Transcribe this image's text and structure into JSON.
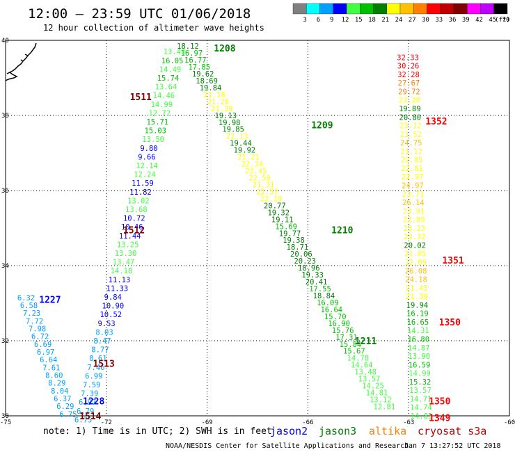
{
  "header": {
    "title": "12:00 – 23:59 UTC 01/06/2018",
    "subtitle": "12 hour collection of altimeter wave heights"
  },
  "legend": {
    "unit": "(ft)",
    "levels": [
      {
        "label": "3",
        "color": "#808080"
      },
      {
        "label": "6",
        "color": "#00ffff"
      },
      {
        "label": "9",
        "color": "#00a0ff"
      },
      {
        "label": "12",
        "color": "#0000ff"
      },
      {
        "label": "15",
        "color": "#40ff40"
      },
      {
        "label": "18",
        "color": "#00c000"
      },
      {
        "label": "21",
        "color": "#008000"
      },
      {
        "label": "24",
        "color": "#ffff00"
      },
      {
        "label": "27",
        "color": "#ffc000"
      },
      {
        "label": "30",
        "color": "#ff8000"
      },
      {
        "label": "33",
        "color": "#ff0000"
      },
      {
        "label": "36",
        "color": "#c00000"
      },
      {
        "label": "39",
        "color": "#800000"
      },
      {
        "label": "42",
        "color": "#ff00ff"
      },
      {
        "label": "45",
        "color": "#c000ff"
      },
      {
        "label": "70",
        "color": "#000000"
      }
    ]
  },
  "notes": {
    "note": "note: 1) Time is in UTC; 2) SWH is in feet",
    "footer_left": "NOAA/NESDIS Center for Satellite Applications and Research",
    "footer_right": "Jan  7 13:27:52 UTC 2018"
  },
  "satellites": [
    {
      "name": "jason2",
      "color": "#0000ff"
    },
    {
      "name": "jason3",
      "color": "#008000"
    },
    {
      "name": "altika",
      "color": "#ff8000"
    },
    {
      "name": "cryosat s3a",
      "color": "#c00000"
    }
  ],
  "chart_data": {
    "type": "scatter",
    "title": "12 hour collection of altimeter wave heights",
    "xlabel": "",
    "ylabel": "",
    "xlim": [
      -75,
      -60
    ],
    "ylim": [
      30,
      40
    ],
    "x_ticks": [
      "-75",
      "-72",
      "-69",
      "-66",
      "-63",
      "-60"
    ],
    "y_ticks": [
      "30",
      "32",
      "34",
      "36",
      "38",
      "40"
    ],
    "grid": true,
    "pass_labels": [
      {
        "text": "1208",
        "lon": -68.8,
        "lat": 39.8,
        "color": "#008000"
      },
      {
        "text": "1511",
        "lon": -71.3,
        "lat": 38.5,
        "color": "#800000"
      },
      {
        "text": "1209",
        "lon": -65.9,
        "lat": 37.75,
        "color": "#008000"
      },
      {
        "text": "1352",
        "lon": -62.5,
        "lat": 37.85,
        "color": "#ff0000"
      },
      {
        "text": "1512",
        "lon": -71.5,
        "lat": 34.95,
        "color": "#800000"
      },
      {
        "text": "1210",
        "lon": -65.3,
        "lat": 34.95,
        "color": "#008000"
      },
      {
        "text": "1351",
        "lon": -62.0,
        "lat": 34.15,
        "color": "#ff0000"
      },
      {
        "text": "1227",
        "lon": -74.0,
        "lat": 33.1,
        "color": "#0000ff"
      },
      {
        "text": "1350",
        "lon": -62.1,
        "lat": 32.5,
        "color": "#ff0000"
      },
      {
        "text": "1211",
        "lon": -64.6,
        "lat": 32.0,
        "color": "#008000"
      },
      {
        "text": "1513",
        "lon": -72.4,
        "lat": 31.4,
        "color": "#800000"
      },
      {
        "text": "1228",
        "lon": -72.7,
        "lat": 30.4,
        "color": "#0000ff"
      },
      {
        "text": "1350",
        "lon": -62.4,
        "lat": 30.4,
        "color": "#ff0000"
      },
      {
        "text": "1514",
        "lon": -72.8,
        "lat": 30.0,
        "color": "#800000"
      },
      {
        "text": "1349",
        "lon": -62.4,
        "lat": 29.95,
        "color": "#ff0000"
      }
    ],
    "tracks": [
      {
        "name": "1208-1211",
        "start": [
          -69.9,
          39.85
        ],
        "end": [
          -64.05,
          30.25
        ],
        "values": [
          "18.12",
          "16.97",
          "16.77",
          "17.85",
          "19.62",
          "18.69",
          "19.84",
          "21.18",
          "21.28",
          "21.39",
          "19.13",
          "19.98",
          "19.85",
          "22.13",
          "19.44",
          "19.92",
          "21.21",
          "22.34",
          "23.45",
          "22.50",
          "21.31",
          "22.57",
          "22.19",
          "20.77",
          "19.32",
          "19.11",
          "15.69",
          "19.77",
          "19.38",
          "18.71",
          "20.06",
          "20.23",
          "18.96",
          "19.33",
          "20.41",
          "17.55",
          "18.84",
          "16.09",
          "16.64",
          "15.70",
          "16.90",
          "15.76",
          "17.31",
          "15.84",
          "15.67",
          "14.78",
          "14.64",
          "13.48",
          "13.57",
          "14.25",
          "14.81",
          "13.12",
          "12.81"
        ]
      },
      {
        "name": "1511-1514",
        "start": [
          -70.3,
          39.7
        ],
        "end": [
          -72.95,
          29.9
        ],
        "values": [
          "13.43",
          "16.05",
          "14.49",
          "15.74",
          "13.64",
          "14.46",
          "14.99",
          "12.72",
          "15.71",
          "15.03",
          "13.50",
          "9.80",
          "9.66",
          "12.14",
          "12.24",
          "11.59",
          "11.82",
          "13.02",
          "13.68",
          "10.72",
          "10.46",
          "11.44",
          "13.25",
          "13.30",
          "13.47",
          "14.18",
          "11.13",
          "11.33",
          "9.84",
          "10.90",
          "10.52",
          "9.53",
          "8.03",
          "8.47",
          "8.77",
          "8.61",
          "7.46",
          "6.99",
          "7.59",
          "7.39",
          "6.97",
          "6.79",
          "6.75"
        ]
      },
      {
        "name": "1227-1228",
        "start": [
          -74.65,
          33.15
        ],
        "end": [
          -73.4,
          30.05
        ],
        "values": [
          "6.32",
          "6.58",
          "7.23",
          "7.72",
          "7.98",
          "6.72",
          "6.69",
          "6.97",
          "6.64",
          "7.61",
          "8.60",
          "8.29",
          "8.04",
          "6.37",
          "6.29",
          "6.75"
        ]
      },
      {
        "name": "1349-1352",
        "start": [
          -63.35,
          39.55
        ],
        "end": [
          -62.95,
          30.0
        ],
        "values": [
          "32.33",
          "30.26",
          "32.28",
          "27.67",
          "29.72",
          "23.20",
          "19.89",
          "20.80",
          "23.12",
          "23.52",
          "24.75",
          "21.12",
          "22.85",
          "22.81",
          "22.97",
          "24.97",
          "23.71",
          "26.14",
          "23.91",
          "22.89",
          "23.23",
          "23.32",
          "20.02",
          "21.05",
          "22.09",
          "26.08",
          "24.18",
          "21.43",
          "21.39",
          "19.94",
          "16.19",
          "16.65",
          "14.31",
          "16.80",
          "14.87",
          "13.90",
          "16.59",
          "14.99",
          "15.32",
          "13.57",
          "14.71",
          "14.74",
          "14.83"
        ]
      }
    ]
  }
}
